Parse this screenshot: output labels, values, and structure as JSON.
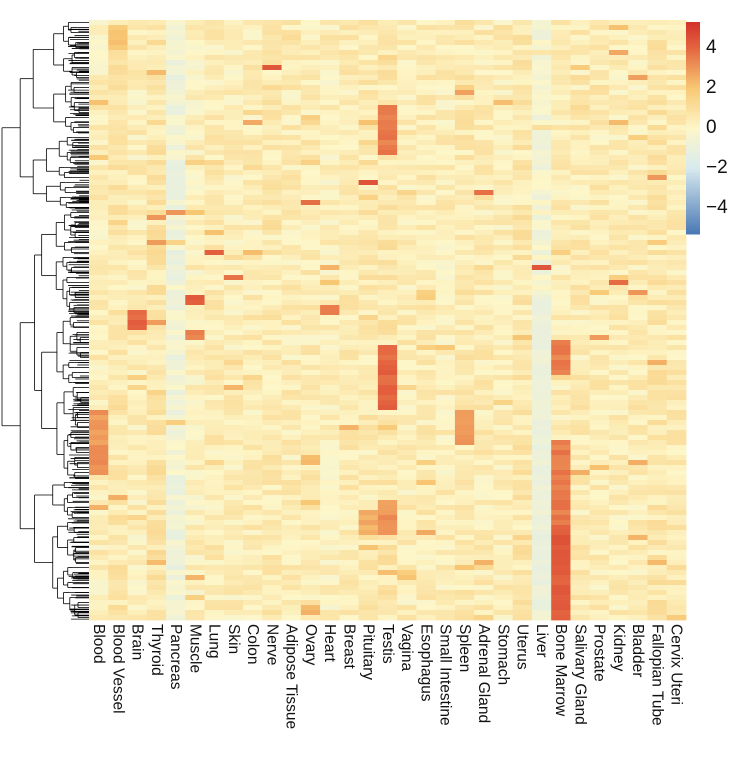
{
  "chart_data": {
    "type": "heatmap",
    "title": "",
    "columns": [
      "Blood",
      "Blood Vessel",
      "Brain",
      "Thyroid",
      "Pancreas",
      "Muscle",
      "Lung",
      "Skin",
      "Colon",
      "Nerve",
      "Adipose Tissue",
      "Ovary",
      "Heart",
      "Breast",
      "Pituitary",
      "Testis",
      "Vagina",
      "Esophagus",
      "Small Intestine",
      "Spleen",
      "Adrenal Gland",
      "Stomach",
      "Uterus",
      "Liver",
      "Bone Marrow",
      "Salivary Gland",
      "Prostate",
      "Kidney",
      "Bladder",
      "Fallopian Tube",
      "Cervix Uteri"
    ],
    "row_count": 120,
    "row_dendrogram": true,
    "column_baseline": [
      0.3,
      0.6,
      0.3,
      0.7,
      -0.6,
      0.2,
      0.4,
      0.3,
      0.4,
      0.5,
      0.4,
      0.4,
      0.2,
      0.4,
      0.5,
      0.6,
      0.3,
      0.4,
      0.3,
      0.5,
      0.4,
      0.3,
      0.6,
      -0.4,
      0.4,
      0.4,
      0.4,
      0.3,
      0.4,
      0.6,
      0.5
    ],
    "highlights": [
      {
        "column": "Blood Vessel",
        "rows": [
          1,
          4
        ],
        "value": 2.0
      },
      {
        "column": "Nerve",
        "rows": [
          9,
          9
        ],
        "value": 4.2
      },
      {
        "column": "Testis",
        "rows": [
          17,
          26
        ],
        "value": 3.5
      },
      {
        "column": "Pituitary",
        "rows": [
          32,
          32
        ],
        "value": 4.2
      },
      {
        "column": "Adrenal Gland",
        "rows": [
          34,
          34
        ],
        "value": 4.0
      },
      {
        "column": "Ovary",
        "rows": [
          36,
          36
        ],
        "value": 3.5
      },
      {
        "column": "Pancreas",
        "rows": [
          38,
          38
        ],
        "value": 3.2
      },
      {
        "column": "Thyroid",
        "rows": [
          39,
          39
        ],
        "value": 3.0
      },
      {
        "column": "Lung",
        "rows": [
          46,
          46
        ],
        "value": 4.0
      },
      {
        "column": "Liver",
        "rows": [
          49,
          49
        ],
        "value": 4.3
      },
      {
        "column": "Skin",
        "rows": [
          51,
          51
        ],
        "value": 4.0
      },
      {
        "column": "Kidney",
        "rows": [
          52,
          52
        ],
        "value": 4.0
      },
      {
        "column": "Bladder",
        "rows": [
          54,
          54
        ],
        "value": 3.0
      },
      {
        "column": "Muscle",
        "rows": [
          55,
          56
        ],
        "value": 4.0
      },
      {
        "column": "Heart",
        "rows": [
          57,
          58
        ],
        "value": 3.5
      },
      {
        "column": "Brain",
        "rows": [
          58,
          61
        ],
        "value": 4.0
      },
      {
        "column": "Muscle",
        "rows": [
          62,
          63
        ],
        "value": 3.5
      },
      {
        "column": "Bone Marrow",
        "rows": [
          64,
          70
        ],
        "value": 3.5
      },
      {
        "column": "Testis",
        "rows": [
          65,
          77
        ],
        "value": 4.0
      },
      {
        "column": "Blood",
        "rows": [
          78,
          90
        ],
        "value": 3.0
      },
      {
        "column": "Spleen",
        "rows": [
          78,
          84
        ],
        "value": 3.0
      },
      {
        "column": "Ovary",
        "rows": [
          87,
          88
        ],
        "value": 2.5
      },
      {
        "column": "Testis",
        "rows": [
          96,
          102
        ],
        "value": 3.0
      },
      {
        "column": "Pituitary",
        "rows": [
          98,
          102
        ],
        "value": 2.5
      },
      {
        "column": "Bone Marrow",
        "rows": [
          84,
          100
        ],
        "value": 3.5
      },
      {
        "column": "Bone Marrow",
        "rows": [
          101,
          119
        ],
        "value": 4.3
      },
      {
        "column": "Liver",
        "rows": [
          56,
          118
        ],
        "value": -0.9
      }
    ],
    "color_scale": {
      "stops": [
        [
          -5.3,
          "#4a78b4"
        ],
        [
          -2,
          "#d8ebef"
        ],
        [
          0,
          "#fdf6c8"
        ],
        [
          2,
          "#f8c873"
        ],
        [
          4,
          "#e46540"
        ],
        [
          5.3,
          "#d3312a"
        ]
      ],
      "ticks": [
        "4",
        "2",
        "0",
        "−2",
        "−4"
      ],
      "tick_values": [
        4,
        2,
        0,
        -2,
        -4
      ],
      "range": [
        -5.3,
        5.3
      ]
    },
    "legend_position": "top-right"
  }
}
